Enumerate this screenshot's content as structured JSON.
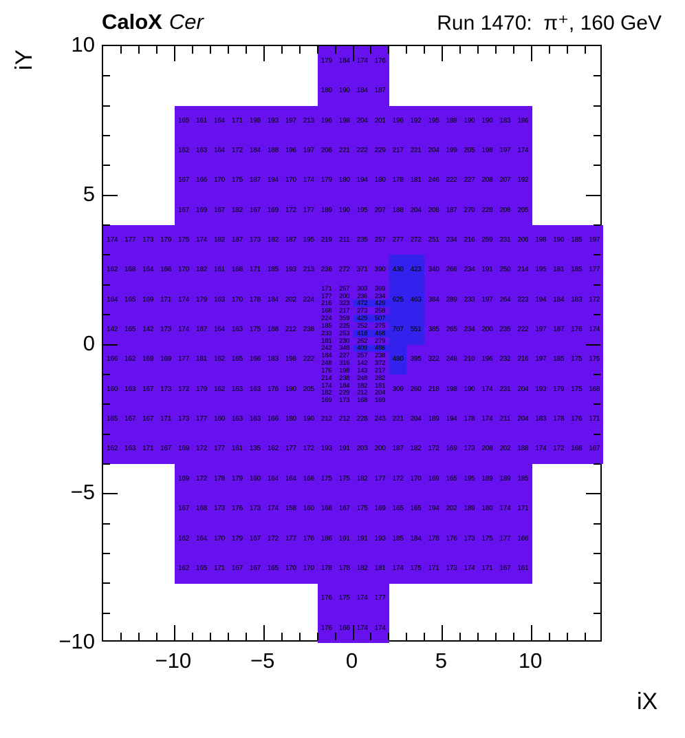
{
  "header": {
    "title_bold": "CaloX",
    "title_italic": "Cer",
    "title_right": "Run 1470:  π⁺, 160 GeV"
  },
  "chart_data": {
    "type": "heatmap",
    "title": "CaloX Cer  Run 1470: π⁺, 160 GeV",
    "xlabel": "iX",
    "ylabel": "iY",
    "xlim": [
      -14,
      14
    ],
    "ylim": [
      -10,
      10
    ],
    "zmin": 135,
    "zmax": 707,
    "grid": false,
    "legend": "none",
    "colors": {
      "low": "#6611ee",
      "high": "#3322ee",
      "high_threshold": 400
    },
    "x_ticks": [
      {
        "v": -10,
        "label": "−10"
      },
      {
        "v": -5,
        "label": "−5"
      },
      {
        "v": 0,
        "label": "0"
      },
      {
        "v": 5,
        "label": "5"
      },
      {
        "v": 10,
        "label": "10"
      }
    ],
    "y_ticks": [
      {
        "v": 10,
        "label": "10"
      },
      {
        "v": 5,
        "label": "5"
      },
      {
        "v": 0,
        "label": "0"
      },
      {
        "v": -5,
        "label": "−5"
      },
      {
        "v": -10,
        "label": "−10"
      }
    ],
    "rows": [
      {
        "y": 10,
        "h": 1,
        "x0": -2,
        "v": [
          179,
          184,
          174,
          176
        ]
      },
      {
        "y": 9,
        "h": 1,
        "x0": -2,
        "v": [
          180,
          190,
          184,
          187
        ]
      },
      {
        "y": 8,
        "h": 1,
        "x0": -10,
        "v": [
          165,
          161,
          164,
          171,
          198,
          193,
          197,
          213,
          196,
          198,
          204,
          201,
          196,
          192,
          195,
          188,
          190,
          190,
          183,
          186
        ]
      },
      {
        "y": 7,
        "h": 1,
        "x0": -10,
        "v": [
          162,
          163,
          164,
          172,
          184,
          188,
          196,
          197,
          206,
          221,
          222,
          229,
          217,
          221,
          204,
          199,
          205,
          198,
          197,
          174
        ]
      },
      {
        "y": 6,
        "h": 1,
        "x0": -10,
        "v": [
          167,
          166,
          170,
          175,
          187,
          194,
          170,
          174,
          179,
          180,
          194,
          180,
          178,
          181,
          246,
          222,
          227,
          208,
          207,
          192
        ]
      },
      {
        "y": 5,
        "h": 1,
        "x0": -10,
        "v": [
          167,
          169,
          167,
          182,
          167,
          169,
          172,
          177,
          189,
          190,
          195,
          207,
          188,
          204,
          208,
          187,
          270,
          228,
          208,
          205
        ]
      },
      {
        "y": 4,
        "h": 1,
        "x0": -14,
        "v": [
          174,
          177,
          173,
          179,
          175,
          174,
          182,
          187,
          173,
          182,
          187,
          195,
          219,
          211,
          235,
          257,
          277,
          272,
          251,
          234,
          216,
          259,
          231,
          206,
          198,
          190,
          185,
          197
        ]
      },
      {
        "y": 3,
        "h": 1,
        "x0": -14,
        "v": [
          162,
          168,
          164,
          166,
          170,
          182,
          161,
          168,
          171,
          185,
          193,
          213,
          236,
          272,
          371,
          390,
          430,
          423,
          340,
          266,
          234,
          191,
          250,
          214,
          195,
          181,
          185,
          177
        ]
      },
      {
        "y": 2,
        "h": 1,
        "x0": -14,
        "v": [
          164,
          165,
          169,
          171,
          174,
          179,
          163,
          170,
          178,
          184,
          202,
          224
        ]
      },
      {
        "y": 2,
        "h": 1,
        "x0": 2,
        "v": [
          625,
          463,
          384,
          289,
          233,
          197,
          264,
          223,
          194,
          184,
          183,
          172
        ]
      },
      {
        "y": 1,
        "h": 1,
        "x0": -14,
        "v": [
          142,
          165,
          142,
          173,
          174,
          187,
          164,
          163,
          175,
          188,
          212,
          238
        ]
      },
      {
        "y": 1,
        "h": 1,
        "x0": 2,
        "v": [
          707,
          551,
          385,
          265,
          234,
          200,
          235,
          222,
          197,
          187,
          176,
          174
        ]
      },
      {
        "y": 0,
        "h": 1,
        "x0": -14,
        "v": [
          166,
          162,
          169,
          169,
          177,
          181,
          162,
          165,
          166,
          183,
          198,
          222
        ]
      },
      {
        "y": 0,
        "h": 1,
        "x0": 2,
        "v": [
          480,
          395,
          322,
          248,
          210,
          196,
          232,
          216,
          197,
          185,
          175,
          175
        ]
      },
      {
        "y": -1,
        "h": 1,
        "x0": -14,
        "v": [
          160,
          163,
          167,
          173,
          172,
          179,
          162,
          163,
          163,
          176,
          190,
          205
        ]
      },
      {
        "y": -1,
        "h": 1,
        "x0": 2,
        "v": [
          309,
          260,
          218,
          198,
          190,
          174,
          231,
          204,
          193,
          179,
          175,
          168
        ]
      },
      {
        "y": -2,
        "h": 1,
        "x0": -14,
        "v": [
          165,
          167,
          167,
          171,
          173,
          177,
          160,
          163,
          163,
          166,
          180,
          190,
          212,
          212,
          228,
          243,
          221,
          204,
          189,
          194,
          178,
          174,
          211,
          204,
          183,
          178,
          176,
          171
        ]
      },
      {
        "y": -3,
        "h": 1,
        "x0": -14,
        "v": [
          162,
          163,
          171,
          167,
          169,
          172,
          177,
          161,
          135,
          162,
          177,
          172,
          193,
          191,
          203,
          200,
          187,
          182,
          172,
          169,
          173,
          208,
          202,
          188,
          174,
          172,
          168,
          167
        ]
      },
      {
        "y": -4,
        "h": 1,
        "x0": -10,
        "v": [
          169,
          172,
          178,
          179,
          160,
          164,
          164,
          166,
          175,
          175,
          182,
          177,
          172,
          170,
          169,
          165,
          195,
          189,
          189,
          185
        ]
      },
      {
        "y": -5,
        "h": 1,
        "x0": -10,
        "v": [
          167,
          168,
          173,
          176,
          173,
          174,
          158,
          160,
          168,
          167,
          175,
          169,
          165,
          165,
          194,
          202,
          189,
          180,
          174,
          171
        ]
      },
      {
        "y": -6,
        "h": 1,
        "x0": -10,
        "v": [
          162,
          164,
          170,
          179,
          167,
          172,
          177,
          176,
          186,
          191,
          191,
          193,
          185,
          184,
          178,
          176,
          173,
          175,
          177,
          166
        ]
      },
      {
        "y": -7,
        "h": 1,
        "x0": -10,
        "v": [
          162,
          165,
          171,
          167,
          167,
          165,
          170,
          170,
          178,
          178,
          182,
          181,
          174,
          175,
          171,
          173,
          174,
          171,
          167,
          161
        ]
      },
      {
        "y": -8,
        "h": 1,
        "x0": -2,
        "v": [
          176,
          175,
          174,
          177
        ]
      },
      {
        "y": -9,
        "h": 1,
        "x0": -2,
        "v": [
          176,
          166,
          174,
          174
        ]
      },
      {
        "y": 2.0,
        "h": 0.25,
        "x0": -2,
        "v": [
          171,
          257,
          303,
          369
        ]
      },
      {
        "y": 1.75,
        "h": 0.25,
        "x0": -2,
        "v": [
          177,
          200,
          236,
          234
        ]
      },
      {
        "y": 1.5,
        "h": 0.25,
        "x0": -2,
        "v": [
          216,
          323,
          472,
          429
        ]
      },
      {
        "y": 1.25,
        "h": 0.25,
        "x0": -2,
        "v": [
          168,
          217,
          273,
          258
        ]
      },
      {
        "y": 1.0,
        "h": 0.25,
        "x0": -2,
        "v": [
          224,
          359,
          429,
          507
        ]
      },
      {
        "y": 0.75,
        "h": 0.25,
        "x0": -2,
        "v": [
          185,
          225,
          252,
          275
        ]
      },
      {
        "y": 0.5,
        "h": 0.25,
        "x0": -2,
        "v": [
          233,
          253,
          418,
          468
        ]
      },
      {
        "y": 0.25,
        "h": 0.25,
        "x0": -2,
        "v": [
          181,
          230,
          262,
          279
        ]
      },
      {
        "y": 0.0,
        "h": 0.25,
        "x0": -2,
        "v": [
          242,
          348,
          409,
          486
        ]
      },
      {
        "y": -0.25,
        "h": 0.25,
        "x0": -2,
        "v": [
          184,
          227,
          257,
          238
        ]
      },
      {
        "y": -0.5,
        "h": 0.25,
        "x0": -2,
        "v": [
          248,
          316,
          142,
          372
        ]
      },
      {
        "y": -0.75,
        "h": 0.25,
        "x0": -2,
        "v": [
          176,
          198,
          143,
          217
        ]
      },
      {
        "y": -1.0,
        "h": 0.25,
        "x0": -2,
        "v": [
          214,
          238,
          248,
          282
        ]
      },
      {
        "y": -1.25,
        "h": 0.25,
        "x0": -2,
        "v": [
          174,
          184,
          182,
          181
        ]
      },
      {
        "y": -1.5,
        "h": 0.25,
        "x0": -2,
        "v": [
          182,
          229,
          212,
          204
        ]
      },
      {
        "y": -1.75,
        "h": 0.25,
        "x0": -2,
        "v": [
          169,
          173,
          168,
          169
        ]
      }
    ]
  }
}
